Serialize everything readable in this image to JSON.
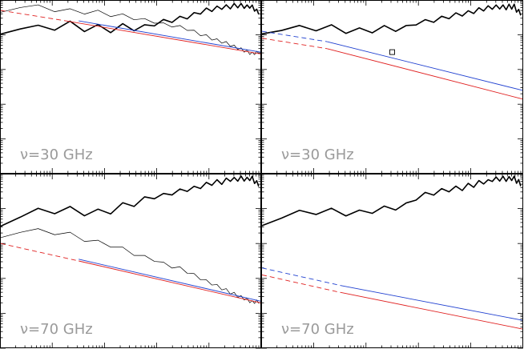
{
  "chart_data": [
    {
      "type": "line",
      "panel": "top-left",
      "annotation": "ν=30 GHz",
      "x_scale": "log",
      "y_scale": "log",
      "series": [
        {
          "color": "#000000",
          "style": "thick",
          "x": [
            0,
            0.06,
            0.15,
            0.25,
            0.35,
            0.45,
            0.5,
            0.55,
            0.6,
            0.7,
            0.8,
            0.9,
            0.97,
            1
          ],
          "y": [
            0.78,
            0.85,
            0.83,
            0.86,
            0.83,
            0.84,
            0.84,
            0.84,
            0.87,
            0.9,
            0.94,
            0.97,
            0.96,
            0.92
          ]
        },
        {
          "color": "#000000",
          "style": "thin",
          "x": [
            0,
            0.05,
            0.2,
            0.4,
            0.5,
            0.6,
            0.7,
            0.8,
            0.9,
            0.97,
            1
          ],
          "y": [
            0.92,
            0.98,
            0.95,
            0.92,
            0.9,
            0.87,
            0.84,
            0.79,
            0.73,
            0.69,
            0.7
          ]
        },
        {
          "color": "#e02020",
          "style": "dashed-solid",
          "x": [
            0,
            0.25,
            1
          ],
          "y": [
            0.94,
            0.88,
            0.69
          ]
        },
        {
          "color": "#2040d0",
          "style": "solid",
          "x": [
            0.3,
            1
          ],
          "y": [
            0.88,
            0.7
          ]
        }
      ]
    },
    {
      "type": "line",
      "panel": "top-right",
      "annotation": "ν=30 GHz",
      "x_scale": "log",
      "y_scale": "log",
      "series": [
        {
          "color": "#000000",
          "style": "thick",
          "x": [
            0,
            0.06,
            0.15,
            0.25,
            0.35,
            0.45,
            0.5,
            0.55,
            0.6,
            0.7,
            0.8,
            0.9,
            0.97,
            1
          ],
          "y": [
            0.78,
            0.84,
            0.83,
            0.84,
            0.82,
            0.83,
            0.83,
            0.84,
            0.87,
            0.9,
            0.93,
            0.96,
            0.96,
            0.91
          ]
        },
        {
          "color": "#2040d0",
          "style": "dashed-solid",
          "x": [
            0,
            0.25,
            1
          ],
          "y": [
            0.82,
            0.76,
            0.48
          ]
        },
        {
          "color": "#e02020",
          "style": "dashed-solid",
          "x": [
            0,
            0.25,
            1
          ],
          "y": [
            0.78,
            0.72,
            0.43
          ]
        },
        {
          "color": "#000000",
          "style": "square-marker",
          "x": [
            0.5
          ],
          "y": [
            0.7
          ]
        }
      ]
    },
    {
      "type": "line",
      "panel": "bottom-left",
      "annotation": "ν=70 GHz",
      "x_scale": "log",
      "y_scale": "log",
      "series": [
        {
          "color": "#000000",
          "style": "thick",
          "x": [
            0,
            0.06,
            0.15,
            0.25,
            0.35,
            0.45,
            0.5,
            0.55,
            0.6,
            0.7,
            0.8,
            0.9,
            0.97,
            1
          ],
          "y": [
            0.68,
            0.77,
            0.78,
            0.79,
            0.77,
            0.8,
            0.82,
            0.85,
            0.87,
            0.9,
            0.94,
            0.97,
            0.97,
            0.93
          ]
        },
        {
          "color": "#000000",
          "style": "thin",
          "x": [
            0,
            0.05,
            0.2,
            0.4,
            0.5,
            0.6,
            0.7,
            0.8,
            0.9,
            0.97,
            1
          ],
          "y": [
            0.62,
            0.68,
            0.67,
            0.6,
            0.55,
            0.5,
            0.45,
            0.38,
            0.31,
            0.26,
            0.27
          ]
        },
        {
          "color": "#e02020",
          "style": "dashed-solid",
          "x": [
            0,
            0.3,
            1
          ],
          "y": [
            0.6,
            0.5,
            0.26
          ]
        },
        {
          "color": "#2040d0",
          "style": "solid",
          "x": [
            0.3,
            1
          ],
          "y": [
            0.51,
            0.27
          ]
        }
      ]
    },
    {
      "type": "line",
      "panel": "bottom-right",
      "annotation": "ν=70 GHz",
      "x_scale": "log",
      "y_scale": "log",
      "series": [
        {
          "color": "#000000",
          "style": "thick",
          "x": [
            0,
            0.06,
            0.15,
            0.25,
            0.35,
            0.45,
            0.5,
            0.55,
            0.6,
            0.7,
            0.8,
            0.9,
            0.97,
            1
          ],
          "y": [
            0.68,
            0.77,
            0.77,
            0.79,
            0.77,
            0.8,
            0.8,
            0.82,
            0.87,
            0.9,
            0.93,
            0.97,
            0.97,
            0.93
          ]
        },
        {
          "color": "#2040d0",
          "style": "dashed-solid",
          "x": [
            0,
            0.3,
            1
          ],
          "y": [
            0.46,
            0.36,
            0.16
          ]
        },
        {
          "color": "#e02020",
          "style": "dashed-solid",
          "x": [
            0,
            0.3,
            1
          ],
          "y": [
            0.42,
            0.32,
            0.11
          ]
        }
      ]
    }
  ]
}
